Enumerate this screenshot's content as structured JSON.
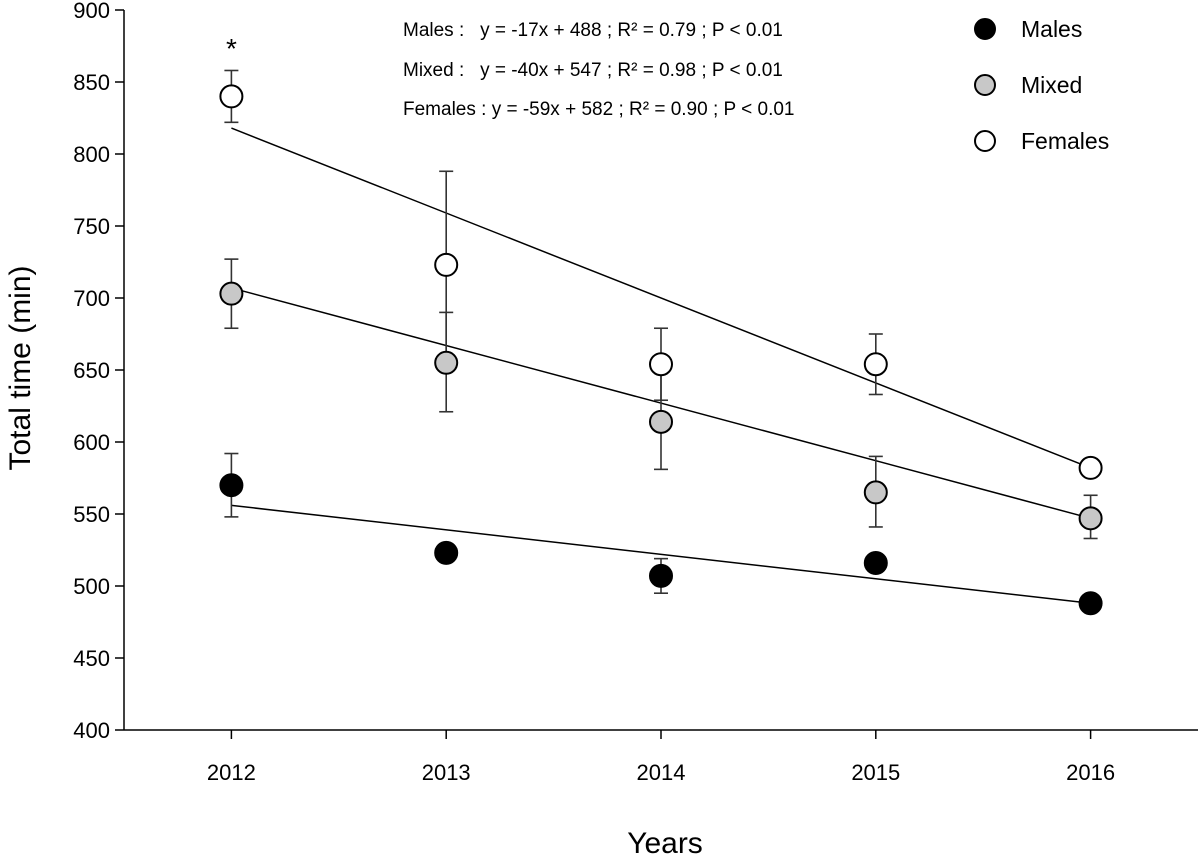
{
  "chart_data": {
    "type": "scatter",
    "title": "",
    "xlabel": "Years",
    "ylabel": "Total time (min)",
    "ylim": [
      400,
      900
    ],
    "yticks": [
      400,
      450,
      500,
      550,
      600,
      650,
      700,
      750,
      800,
      850,
      900
    ],
    "xticks": [
      2012,
      2013,
      2014,
      2015,
      2016
    ],
    "xlim": [
      2011.5,
      2016.5
    ],
    "grid": false,
    "legend_position": "top-right",
    "series": [
      {
        "name": "Males",
        "marker_fill": "#000000",
        "x": [
          2012,
          2013,
          2014,
          2015,
          2016
        ],
        "y": [
          570,
          523,
          507,
          516,
          488
        ],
        "error_upper": [
          592,
          null,
          519,
          null,
          null
        ],
        "error_lower": [
          548,
          null,
          495,
          null,
          null
        ],
        "trend": {
          "slope": -17,
          "intercept": 488
        }
      },
      {
        "name": "Mixed",
        "marker_fill": "#c8c8c8",
        "x": [
          2012,
          2013,
          2014,
          2015,
          2016
        ],
        "y": [
          703,
          655,
          614,
          565,
          547
        ],
        "error_upper": [
          727,
          690,
          648,
          590,
          563
        ],
        "error_lower": [
          679,
          621,
          581,
          541,
          533
        ],
        "trend": {
          "slope": -40,
          "intercept": 547
        }
      },
      {
        "name": "Females",
        "marker_fill": "#ffffff",
        "x": [
          2012,
          2013,
          2014,
          2015,
          2016
        ],
        "y": [
          840,
          723,
          654,
          654,
          582
        ],
        "error_upper": [
          858,
          788,
          679,
          675,
          null
        ],
        "error_lower": [
          822,
          658,
          629,
          633,
          null
        ],
        "trend": {
          "slope": -59,
          "intercept": 582
        }
      }
    ],
    "equations": [
      "Males :   y = -17x + 488 ; R² = 0.79 ; P < 0.01",
      "Mixed :   y = -40x + 547 ; R² = 0.98 ; P < 0.01",
      "Females : y = -59x + 582 ; R² = 0.90 ; P < 0.01"
    ],
    "annotation": {
      "text": "*",
      "x": 2012
    }
  }
}
